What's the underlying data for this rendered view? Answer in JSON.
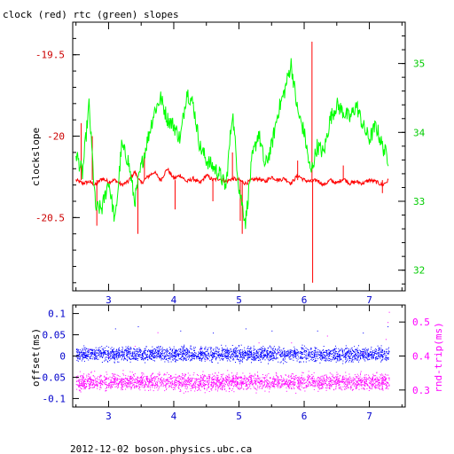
{
  "title": "clock (red) rtc (green) slopes",
  "footer": "2012-12-02  boson.physics.ubc.ca",
  "colors": {
    "red": "#ff0000",
    "green": "#00ff00",
    "blue": "#0000ff",
    "magenta": "#ff00ff",
    "black": "#000000"
  },
  "chart_data": [
    {
      "type": "line",
      "title": "clock (red) rtc (green) slopes",
      "xlabel": "",
      "ylabel": "clockslope",
      "ylabel_right": "",
      "xlim": [
        2.45,
        7.55
      ],
      "ylim_left": [
        -20.95,
        -19.3
      ],
      "ylim_right": [
        31.7,
        35.6
      ],
      "x_ticks": [
        3,
        4,
        5,
        6,
        7
      ],
      "y_ticks_left": [
        -20.5,
        -20,
        -19.5
      ],
      "y_ticks_right": [
        32,
        33,
        34,
        35
      ],
      "grid": false,
      "series": [
        {
          "name": "clock (red)",
          "axis": "left",
          "color": "#ff0000",
          "x": [
            2.5,
            2.6,
            2.7,
            2.8,
            2.9,
            3.0,
            3.1,
            3.2,
            3.3,
            3.4,
            3.5,
            3.6,
            3.7,
            3.8,
            3.9,
            4.0,
            4.1,
            4.2,
            4.3,
            4.4,
            4.5,
            4.6,
            4.7,
            4.8,
            4.9,
            5.0,
            5.1,
            5.2,
            5.3,
            5.4,
            5.5,
            5.6,
            5.7,
            5.8,
            5.9,
            6.0,
            6.1,
            6.2,
            6.3,
            6.4,
            6.5,
            6.6,
            6.7,
            6.8,
            6.9,
            7.0,
            7.1,
            7.2,
            7.3
          ],
          "y": [
            -20.27,
            -20.29,
            -20.28,
            -20.3,
            -20.26,
            -20.28,
            -20.27,
            -20.3,
            -20.28,
            -20.22,
            -20.29,
            -20.25,
            -20.22,
            -20.27,
            -20.2,
            -20.26,
            -20.24,
            -20.28,
            -20.26,
            -20.29,
            -20.24,
            -20.27,
            -20.26,
            -20.28,
            -20.26,
            -20.27,
            -20.29,
            -20.27,
            -20.26,
            -20.28,
            -20.25,
            -20.27,
            -20.26,
            -20.29,
            -20.24,
            -20.27,
            -20.28,
            -20.27,
            -20.3,
            -20.27,
            -20.29,
            -20.26,
            -20.29,
            -20.28,
            -20.29,
            -20.27,
            -20.28,
            -20.3,
            -20.27
          ]
        },
        {
          "name": "rtc (green)",
          "axis": "right",
          "color": "#00ff00",
          "x": [
            2.5,
            2.6,
            2.7,
            2.8,
            2.9,
            3.0,
            3.1,
            3.2,
            3.3,
            3.4,
            3.5,
            3.6,
            3.7,
            3.8,
            3.9,
            4.0,
            4.1,
            4.2,
            4.3,
            4.4,
            4.5,
            4.6,
            4.7,
            4.8,
            4.9,
            5.0,
            5.1,
            5.2,
            5.3,
            5.4,
            5.5,
            5.6,
            5.7,
            5.8,
            5.9,
            6.0,
            6.1,
            6.2,
            6.3,
            6.4,
            6.5,
            6.6,
            6.7,
            6.8,
            6.9,
            7.0,
            7.1,
            7.2,
            7.3
          ],
          "y": [
            33.7,
            33.4,
            34.4,
            32.9,
            32.9,
            33.3,
            32.7,
            33.8,
            33.6,
            33.0,
            33.5,
            33.9,
            34.3,
            34.5,
            34.2,
            34.1,
            33.9,
            34.6,
            34.4,
            33.8,
            33.6,
            33.5,
            33.4,
            33.2,
            34.3,
            33.2,
            32.7,
            33.6,
            34.0,
            33.5,
            33.8,
            34.3,
            34.6,
            35.0,
            34.3,
            34.0,
            33.4,
            33.8,
            33.7,
            34.2,
            34.4,
            34.3,
            34.2,
            34.4,
            34.1,
            33.9,
            34.1,
            33.8,
            33.6
          ]
        }
      ]
    },
    {
      "type": "scatter",
      "title": "",
      "xlabel": "",
      "ylabel": "offset(ms)",
      "ylabel_right": "rnd-trip(ms)",
      "xlim": [
        2.45,
        7.55
      ],
      "ylim_left": [
        -0.12,
        0.12
      ],
      "ylim_right": [
        0.25,
        0.55
      ],
      "x_ticks": [
        3,
        4,
        5,
        6,
        7
      ],
      "y_ticks_left": [
        -0.1,
        -0.05,
        0,
        0.05,
        0.1
      ],
      "y_ticks_right": [
        0.3,
        0.4,
        0.5
      ],
      "series": [
        {
          "name": "offset(ms)",
          "axis": "left",
          "color": "#0000ff",
          "x_range": [
            2.5,
            7.3
          ],
          "y_center": 0.005,
          "y_spread": 0.025,
          "outliers": [
            [
              3.1,
              0.065
            ],
            [
              3.45,
              0.07
            ],
            [
              4.1,
              0.06
            ],
            [
              4.6,
              0.055
            ],
            [
              5.1,
              0.065
            ],
            [
              5.5,
              0.06
            ],
            [
              6.2,
              0.06
            ],
            [
              6.9,
              0.055
            ],
            [
              7.28,
              0.07
            ]
          ]
        },
        {
          "name": "rnd-trip(ms)",
          "axis": "right",
          "color": "#ff00ff",
          "x_range": [
            2.5,
            7.3
          ],
          "y_center": 0.325,
          "y_spread": 0.035,
          "outliers": [
            [
              2.7,
              0.42
            ],
            [
              3.0,
              0.4
            ],
            [
              3.4,
              0.43
            ],
            [
              3.75,
              0.47
            ],
            [
              4.4,
              0.42
            ],
            [
              4.5,
              0.39
            ],
            [
              5.3,
              0.44
            ],
            [
              5.6,
              0.41
            ],
            [
              5.8,
              0.44
            ],
            [
              6.35,
              0.46
            ],
            [
              6.9,
              0.41
            ],
            [
              7.25,
              0.45
            ],
            [
              7.28,
              0.5
            ],
            [
              7.3,
              0.53
            ]
          ]
        }
      ]
    }
  ]
}
